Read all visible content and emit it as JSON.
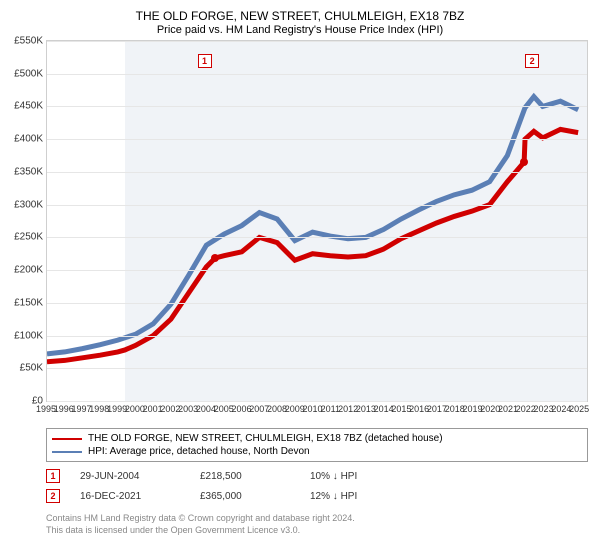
{
  "title": "THE OLD FORGE, NEW STREET, CHULMLEIGH, EX18 7BZ",
  "subtitle": "Price paid vs. HM Land Registry's House Price Index (HPI)",
  "chart": {
    "type": "line",
    "y": {
      "min": 0,
      "max": 550000,
      "ticks": [
        0,
        50000,
        100000,
        150000,
        200000,
        250000,
        300000,
        350000,
        400000,
        450000,
        500000,
        550000
      ],
      "tick_labels": [
        "£0",
        "£50K",
        "£100K",
        "£150K",
        "£200K",
        "£250K",
        "£300K",
        "£350K",
        "£400K",
        "£450K",
        "£500K",
        "£550K"
      ],
      "label_fontsize": 10
    },
    "x": {
      "min": 1995,
      "max": 2025.5,
      "ticks": [
        1995,
        1996,
        1997,
        1998,
        1999,
        2000,
        2001,
        2002,
        2003,
        2004,
        2005,
        2006,
        2007,
        2008,
        2009,
        2010,
        2011,
        2012,
        2013,
        2014,
        2015,
        2016,
        2017,
        2018,
        2019,
        2020,
        2021,
        2022,
        2023,
        2024,
        2025
      ],
      "label_fontsize": 9
    },
    "shade_start_x": 1999.4,
    "background_color": "#ffffff",
    "shade_color": "#f0f3f7",
    "grid_color": "#e6e6e6",
    "border_color": "#cfcfcf",
    "series": [
      {
        "name": "price_paid",
        "label": "THE OLD FORGE, NEW STREET, CHULMLEIGH, EX18 7BZ (detached house)",
        "color": "#d00000",
        "line_width": 1.5,
        "points": [
          [
            1995,
            60000
          ],
          [
            1996,
            62000
          ],
          [
            1997,
            66000
          ],
          [
            1998,
            70000
          ],
          [
            1999,
            75000
          ],
          [
            1999.4,
            78000
          ],
          [
            2000,
            85000
          ],
          [
            2001,
            100000
          ],
          [
            2002,
            125000
          ],
          [
            2003,
            165000
          ],
          [
            2004,
            205000
          ],
          [
            2004.5,
            218500
          ],
          [
            2005,
            222000
          ],
          [
            2006,
            228000
          ],
          [
            2007,
            250000
          ],
          [
            2008,
            242000
          ],
          [
            2009,
            215000
          ],
          [
            2010,
            225000
          ],
          [
            2011,
            222000
          ],
          [
            2012,
            220000
          ],
          [
            2013,
            222000
          ],
          [
            2014,
            232000
          ],
          [
            2015,
            248000
          ],
          [
            2016,
            260000
          ],
          [
            2017,
            272000
          ],
          [
            2018,
            282000
          ],
          [
            2019,
            290000
          ],
          [
            2020,
            300000
          ],
          [
            2021,
            335000
          ],
          [
            2021.95,
            365000
          ],
          [
            2022,
            400000
          ],
          [
            2022.5,
            412000
          ],
          [
            2023,
            402000
          ],
          [
            2024,
            415000
          ],
          [
            2025,
            410000
          ]
        ]
      },
      {
        "name": "hpi",
        "label": "HPI: Average price, detached house, North Devon",
        "color": "#5b7fb5",
        "line_width": 1.5,
        "points": [
          [
            1995,
            72000
          ],
          [
            1996,
            75000
          ],
          [
            1997,
            80000
          ],
          [
            1998,
            86000
          ],
          [
            1999,
            93000
          ],
          [
            2000,
            102000
          ],
          [
            2001,
            118000
          ],
          [
            2002,
            148000
          ],
          [
            2003,
            192000
          ],
          [
            2004,
            238000
          ],
          [
            2005,
            255000
          ],
          [
            2006,
            268000
          ],
          [
            2007,
            288000
          ],
          [
            2008,
            278000
          ],
          [
            2009,
            245000
          ],
          [
            2010,
            258000
          ],
          [
            2011,
            252000
          ],
          [
            2012,
            248000
          ],
          [
            2013,
            250000
          ],
          [
            2014,
            262000
          ],
          [
            2015,
            278000
          ],
          [
            2016,
            292000
          ],
          [
            2017,
            305000
          ],
          [
            2018,
            315000
          ],
          [
            2019,
            322000
          ],
          [
            2020,
            335000
          ],
          [
            2021,
            375000
          ],
          [
            2022,
            448000
          ],
          [
            2022.5,
            465000
          ],
          [
            2023,
            450000
          ],
          [
            2024,
            458000
          ],
          [
            2025,
            445000
          ]
        ]
      }
    ],
    "markers": [
      {
        "id": "1",
        "x": 2004.5,
        "y": 218500,
        "box_x": 2003.9,
        "box_y": 520000
      },
      {
        "id": "2",
        "x": 2021.95,
        "y": 365000,
        "box_x": 2022.4,
        "box_y": 520000
      }
    ]
  },
  "legend": {
    "border_color": "#999999",
    "fontsize": 10
  },
  "events": [
    {
      "id": "1",
      "date": "29-JUN-2004",
      "price": "£218,500",
      "pct": "10% ↓ HPI"
    },
    {
      "id": "2",
      "date": "16-DEC-2021",
      "price": "£365,000",
      "pct": "12% ↓ HPI"
    }
  ],
  "attribution": {
    "line1": "Contains HM Land Registry data © Crown copyright and database right 2024.",
    "line2": "This data is licensed under the Open Government Licence v3.0."
  }
}
